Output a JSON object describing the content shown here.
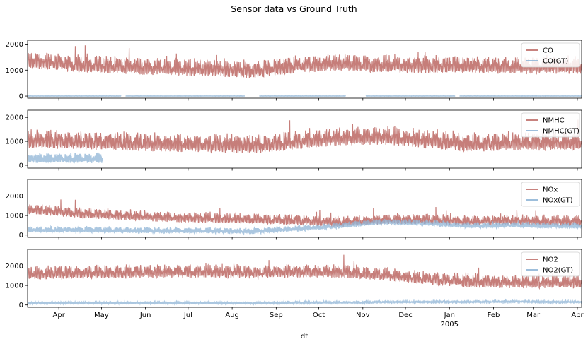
{
  "figure": {
    "title": "Sensor data vs Ground Truth",
    "xlabel": "dt"
  },
  "colors": {
    "sensor": "#c0706b",
    "ground_truth": "#8fb4d6",
    "overlap": "#7d6f92"
  },
  "x_ticks": [
    {
      "date": "2004-04-01",
      "label": "Apr"
    },
    {
      "date": "2004-05-01",
      "label": "May"
    },
    {
      "date": "2004-06-01",
      "label": "Jun"
    },
    {
      "date": "2004-07-01",
      "label": "Jul"
    },
    {
      "date": "2004-08-01",
      "label": "Aug"
    },
    {
      "date": "2004-09-01",
      "label": "Sep"
    },
    {
      "date": "2004-10-01",
      "label": "Oct"
    },
    {
      "date": "2004-11-01",
      "label": "Nov"
    },
    {
      "date": "2004-12-01",
      "label": "Dec"
    },
    {
      "date": "2005-01-01",
      "label": "Jan",
      "sublabel": "2005"
    },
    {
      "date": "2005-02-01",
      "label": "Feb"
    },
    {
      "date": "2005-03-01",
      "label": "Mar"
    },
    {
      "date": "2005-04-01",
      "label": "Apr"
    }
  ],
  "chart_data": [
    {
      "type": "line",
      "xlim": [
        "2004-03-10",
        "2005-04-04"
      ],
      "ylim": [
        -80,
        2150
      ],
      "yticks": [
        0,
        1000,
        2000
      ],
      "legend": "top-right",
      "series": [
        {
          "name": "CO",
          "role": "sensor",
          "base": 1150,
          "amp": 430,
          "weekly_boost": 200,
          "gaps": []
        },
        {
          "name": "CO(GT)",
          "role": "ground_truth",
          "base": 2,
          "amp": 6,
          "gaps": [
            [
              "2004-05-15",
              "2004-05-18"
            ],
            [
              "2004-08-10",
              "2004-08-20"
            ],
            [
              "2004-10-20",
              "2004-11-03"
            ],
            [
              "2005-01-05",
              "2005-01-08"
            ]
          ]
        }
      ],
      "seasonal_levels": [
        {
          "month": "2004-03",
          "sensor": 1350
        },
        {
          "month": "2004-04",
          "sensor": 1200
        },
        {
          "month": "2004-05",
          "sensor": 1150
        },
        {
          "month": "2004-06",
          "sensor": 1080
        },
        {
          "month": "2004-07",
          "sensor": 1050
        },
        {
          "month": "2004-08",
          "sensor": 980
        },
        {
          "month": "2004-09",
          "sensor": 1180
        },
        {
          "month": "2004-10",
          "sensor": 1250
        },
        {
          "month": "2004-11",
          "sensor": 1200
        },
        {
          "month": "2004-12",
          "sensor": 1180
        },
        {
          "month": "2005-01",
          "sensor": 1180
        },
        {
          "month": "2005-02",
          "sensor": 1130
        },
        {
          "month": "2005-03",
          "sensor": 1150
        }
      ]
    },
    {
      "type": "line",
      "xlim": [
        "2004-03-10",
        "2005-04-04"
      ],
      "ylim": [
        -120,
        2300
      ],
      "yticks": [
        0,
        1000,
        2000
      ],
      "legend": "top-right",
      "series": [
        {
          "name": "NMHC",
          "role": "sensor",
          "base": 950,
          "amp": 500,
          "weekly_boost": 250,
          "gaps": []
        },
        {
          "name": "NMHC(GT)",
          "role": "ground_truth",
          "base": 250,
          "amp": 300,
          "end": "2004-05-02",
          "gaps": []
        }
      ],
      "seasonal_levels": [
        {
          "month": "2004-03",
          "sensor": 1050
        },
        {
          "month": "2004-04",
          "sensor": 1000
        },
        {
          "month": "2004-05",
          "sensor": 950
        },
        {
          "month": "2004-06",
          "sensor": 900
        },
        {
          "month": "2004-07",
          "sensor": 880
        },
        {
          "month": "2004-08",
          "sensor": 820
        },
        {
          "month": "2004-09",
          "sensor": 1000
        },
        {
          "month": "2004-10",
          "sensor": 1150
        },
        {
          "month": "2004-11",
          "sensor": 1200
        },
        {
          "month": "2004-12",
          "sensor": 1050
        },
        {
          "month": "2005-01",
          "sensor": 900
        },
        {
          "month": "2005-02",
          "sensor": 950
        },
        {
          "month": "2005-03",
          "sensor": 950
        }
      ]
    },
    {
      "type": "line",
      "xlim": [
        "2004-03-10",
        "2005-04-04"
      ],
      "ylim": [
        -120,
        2850
      ],
      "yticks": [
        0,
        1000,
        2000
      ],
      "legend": "top-right",
      "series": [
        {
          "name": "NOx",
          "role": "sensor",
          "base": 1000,
          "amp": 350,
          "weekly_boost": 200,
          "gaps": []
        },
        {
          "name": "NOx(GT)",
          "role": "ground_truth",
          "base": 200,
          "amp": 200,
          "gaps": []
        }
      ],
      "seasonal_levels": [
        {
          "month": "2004-03",
          "sensor": 1300,
          "gt": 250
        },
        {
          "month": "2004-04",
          "sensor": 1100,
          "gt": 250
        },
        {
          "month": "2004-05",
          "sensor": 1000,
          "gt": 220
        },
        {
          "month": "2004-06",
          "sensor": 900,
          "gt": 200
        },
        {
          "month": "2004-07",
          "sensor": 850,
          "gt": 200
        },
        {
          "month": "2004-08",
          "sensor": 800,
          "gt": 170
        },
        {
          "month": "2004-09",
          "sensor": 750,
          "gt": 300
        },
        {
          "month": "2004-10",
          "sensor": 650,
          "gt": 450
        },
        {
          "month": "2004-11",
          "sensor": 800,
          "gt": 650
        },
        {
          "month": "2004-12",
          "sensor": 800,
          "gt": 600
        },
        {
          "month": "2005-01",
          "sensor": 700,
          "gt": 450
        },
        {
          "month": "2005-02",
          "sensor": 750,
          "gt": 500
        },
        {
          "month": "2005-03",
          "sensor": 700,
          "gt": 450
        }
      ]
    },
    {
      "type": "line",
      "xlim": [
        "2004-03-10",
        "2005-04-04"
      ],
      "ylim": [
        -120,
        2850
      ],
      "yticks": [
        0,
        1000,
        2000
      ],
      "legend": "top-right",
      "series": [
        {
          "name": "NO2",
          "role": "sensor",
          "base": 1650,
          "amp": 450,
          "weekly_boost": 250,
          "gaps": []
        },
        {
          "name": "NO2(GT)",
          "role": "ground_truth",
          "base": 100,
          "amp": 70,
          "gaps": []
        }
      ],
      "seasonal_levels": [
        {
          "month": "2004-03",
          "sensor": 1600,
          "gt": 100
        },
        {
          "month": "2004-04",
          "sensor": 1650,
          "gt": 100
        },
        {
          "month": "2004-05",
          "sensor": 1650,
          "gt": 100
        },
        {
          "month": "2004-06",
          "sensor": 1700,
          "gt": 100
        },
        {
          "month": "2004-07",
          "sensor": 1700,
          "gt": 100
        },
        {
          "month": "2004-08",
          "sensor": 1650,
          "gt": 90
        },
        {
          "month": "2004-09",
          "sensor": 1700,
          "gt": 110
        },
        {
          "month": "2004-10",
          "sensor": 1700,
          "gt": 120
        },
        {
          "month": "2004-11",
          "sensor": 1550,
          "gt": 140
        },
        {
          "month": "2004-12",
          "sensor": 1350,
          "gt": 150
        },
        {
          "month": "2005-01",
          "sensor": 1200,
          "gt": 150
        },
        {
          "month": "2005-02",
          "sensor": 1150,
          "gt": 170
        },
        {
          "month": "2005-03",
          "sensor": 1150,
          "gt": 150
        }
      ]
    }
  ]
}
